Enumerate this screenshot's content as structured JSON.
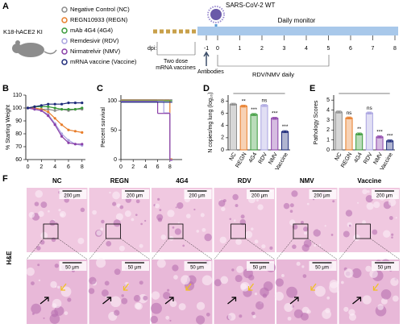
{
  "panel_labels": [
    "A",
    "B",
    "C",
    "D",
    "E",
    "F"
  ],
  "panel_a": {
    "model": "K18-hACE2 KI",
    "legend": [
      "Negative Control (NC)",
      "REGN10933 (REGN)",
      "mAb 4G4 (4G4)",
      "Remdesivir (RDV)",
      "Nirmatrelvir (NMV)",
      "mRNA vaccine (Vaccine)"
    ],
    "legend_colors": [
      "#8c8c8c",
      "#e87d2a",
      "#3a9a3a",
      "#a9a3e0",
      "#8a3fa8",
      "#1d2a7a"
    ],
    "virus": "SARS-CoV-2 WT",
    "monitor": "Daily monitor",
    "dpi_label": "dpi:",
    "vaccine_note": "Two dose mRNA vaccines",
    "antibody_note": "Antibodies",
    "treatment_note": "RDV/NMV daily",
    "days": [
      -1,
      0,
      1,
      2,
      3,
      4,
      5,
      6,
      7,
      8
    ]
  },
  "chart_data": [
    {
      "type": "line",
      "ylabel": "% Starting Weight",
      "x": [
        0,
        1,
        2,
        3,
        4,
        5,
        6,
        7,
        8
      ],
      "xlim": [
        -0.3,
        8.5
      ],
      "xticks": [
        0,
        2,
        4,
        6,
        8
      ],
      "ylim": [
        60,
        110
      ],
      "yticks": [
        60,
        70,
        80,
        90,
        100,
        110
      ],
      "series": [
        {
          "name": "NC",
          "color": "#8c8c8c",
          "values": [
            100,
            100,
            99,
            99,
            98,
            99,
            98,
            99,
            99
          ]
        },
        {
          "name": "REGN",
          "color": "#e87d2a",
          "values": [
            100,
            100,
            99,
            97,
            92,
            87,
            83,
            82,
            81
          ]
        },
        {
          "name": "4G4",
          "color": "#3a9a3a",
          "values": [
            100,
            101,
            101,
            101,
            100,
            99,
            99,
            99,
            100
          ]
        },
        {
          "name": "RDV",
          "color": "#a9a3e0",
          "values": [
            100,
            99,
            98,
            95,
            88,
            80,
            75,
            72,
            71
          ]
        },
        {
          "name": "NMV",
          "color": "#8a3fa8",
          "values": [
            100,
            99,
            98,
            94,
            87,
            78,
            73,
            72,
            72
          ]
        },
        {
          "name": "Vaccine",
          "color": "#1d2a7a",
          "values": [
            100,
            101,
            102,
            103,
            103,
            103,
            104,
            104,
            104
          ]
        }
      ]
    },
    {
      "type": "step",
      "ylabel": "Percent survival",
      "x": [
        0,
        6,
        7,
        8
      ],
      "xlim": [
        0,
        10
      ],
      "xticks": [
        0,
        2,
        4,
        6,
        8
      ],
      "ylim": [
        0,
        110
      ],
      "yticks": [
        0,
        50,
        100
      ],
      "series": [
        {
          "name": "NC",
          "color": "#8c8c8c",
          "values": [
            100,
            100,
            100,
            100
          ]
        },
        {
          "name": "REGN",
          "color": "#e87d2a",
          "values": [
            100,
            100,
            100,
            0
          ]
        },
        {
          "name": "4G4",
          "color": "#3a9a3a",
          "values": [
            100,
            100,
            100,
            100
          ]
        },
        {
          "name": "RDV",
          "color": "#a9a3e0",
          "values": [
            100,
            100,
            80,
            0
          ]
        },
        {
          "name": "NMV",
          "color": "#8a3fa8",
          "values": [
            100,
            80,
            80,
            0
          ]
        },
        {
          "name": "Vaccine",
          "color": "#1d2a7a",
          "values": [
            100,
            100,
            100,
            100
          ]
        }
      ]
    },
    {
      "type": "bar",
      "ylabel": "N copies/mg lung (log₁₀)",
      "categories": [
        "NC",
        "REGN",
        "4G4",
        "RDV",
        "NMV",
        "Vaccine"
      ],
      "values": [
        7.5,
        7.2,
        5.8,
        7.3,
        5.2,
        3.0
      ],
      "colors": [
        "#8c8c8c",
        "#e87d2a",
        "#3a9a3a",
        "#a9a3e0",
        "#8a3fa8",
        "#1d2a7a"
      ],
      "annotations": [
        null,
        "**",
        "***",
        "ns",
        "***",
        "***"
      ],
      "ylim": [
        0,
        9
      ],
      "yticks": [
        0,
        2,
        4,
        6,
        8
      ]
    },
    {
      "type": "bar",
      "ylabel": "Pathology Scores",
      "categories": [
        "NC",
        "REGN",
        "4G4",
        "RDV",
        "NMV",
        "Vaccine"
      ],
      "values": [
        3.8,
        3.2,
        1.6,
        3.7,
        1.3,
        0.9
      ],
      "colors": [
        "#8c8c8c",
        "#e87d2a",
        "#3a9a3a",
        "#a9a3e0",
        "#8a3fa8",
        "#1d2a7a"
      ],
      "annotations": [
        null,
        "ns",
        "**",
        "ns",
        "***",
        "***"
      ],
      "ylim": [
        0,
        5.5
      ],
      "yticks": [
        0,
        1,
        2,
        3,
        4,
        5
      ]
    }
  ],
  "panel_f": {
    "columns": [
      "NC",
      "REGN",
      "4G4",
      "RDV",
      "NMV",
      "Vaccine"
    ],
    "row_label": "H&E",
    "scale_top": "200 μm",
    "scale_bottom": "50 μm"
  }
}
